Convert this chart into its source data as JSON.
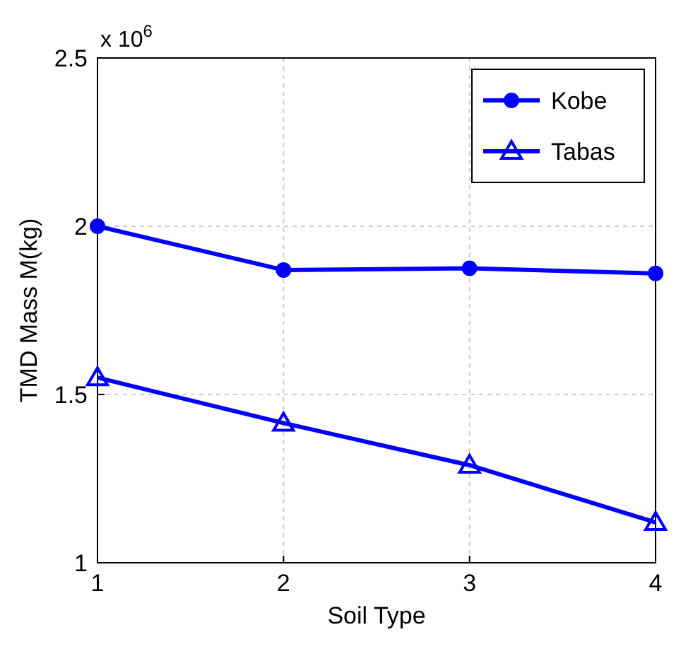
{
  "chart_data": {
    "type": "line",
    "xlabel": "Soil Type",
    "ylabel": "TMD Mass M(kg)",
    "annotations": [
      "x 10$^{6}$"
    ],
    "x": [
      1,
      2,
      3,
      4
    ],
    "xlim": [
      1,
      4
    ],
    "xticks": [
      1,
      2,
      3,
      4
    ],
    "ylim": [
      1,
      2.5
    ],
    "yticks": [
      1,
      1.5,
      2,
      2.5
    ],
    "grid": true,
    "legend": "top right",
    "line_style": "solid",
    "series": [
      {
        "name": "Kobe",
        "color": "#0000ff",
        "marker": "circle",
        "values": [
          2.0,
          1.87,
          1.875,
          1.86
        ]
      },
      {
        "name": "Tabas",
        "color": "#0000ff",
        "marker": "triangle",
        "values": [
          1.55,
          1.415,
          1.29,
          1.12
        ]
      }
    ]
  }
}
